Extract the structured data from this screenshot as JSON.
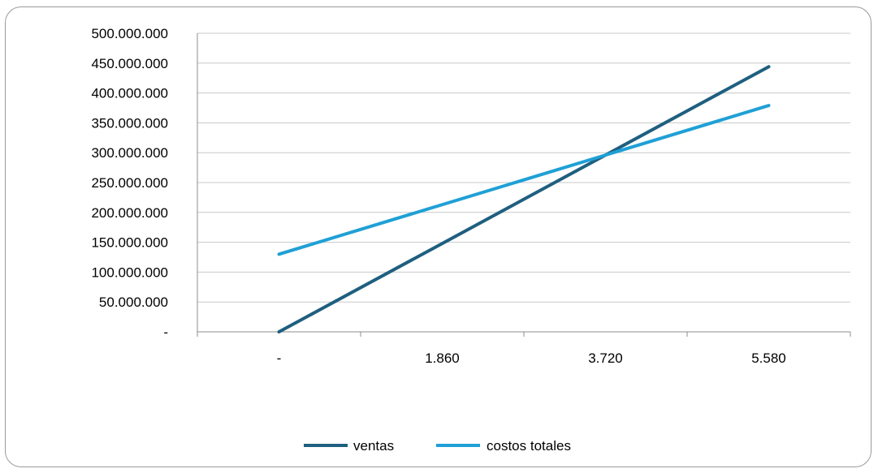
{
  "chart_data": {
    "type": "line",
    "title": "",
    "xlabel": "",
    "ylabel": "",
    "categories": [
      "-",
      "1.860",
      "3.720",
      "5.580"
    ],
    "x": [
      0,
      1860,
      3720,
      5580
    ],
    "y_ticks": [
      "-",
      "50.000.000",
      "100.000.000",
      "150.000.000",
      "200.000.000",
      "250.000.000",
      "300.000.000",
      "350.000.000",
      "400.000.000",
      "450.000.000",
      "500.000.000"
    ],
    "y_tick_values": [
      0,
      50000000,
      100000000,
      150000000,
      200000000,
      250000000,
      300000000,
      350000000,
      400000000,
      450000000,
      500000000
    ],
    "ylim": [
      0,
      500000000
    ],
    "grid": true,
    "legend_position": "bottom",
    "series": [
      {
        "name": "ventas",
        "color": "#1f5f7f",
        "values": [
          0,
          148000000,
          296000000,
          444000000
        ]
      },
      {
        "name": "costos totales",
        "color": "#1fa0d6",
        "values": [
          130000000,
          213000000,
          296000000,
          379000000
        ]
      }
    ]
  }
}
